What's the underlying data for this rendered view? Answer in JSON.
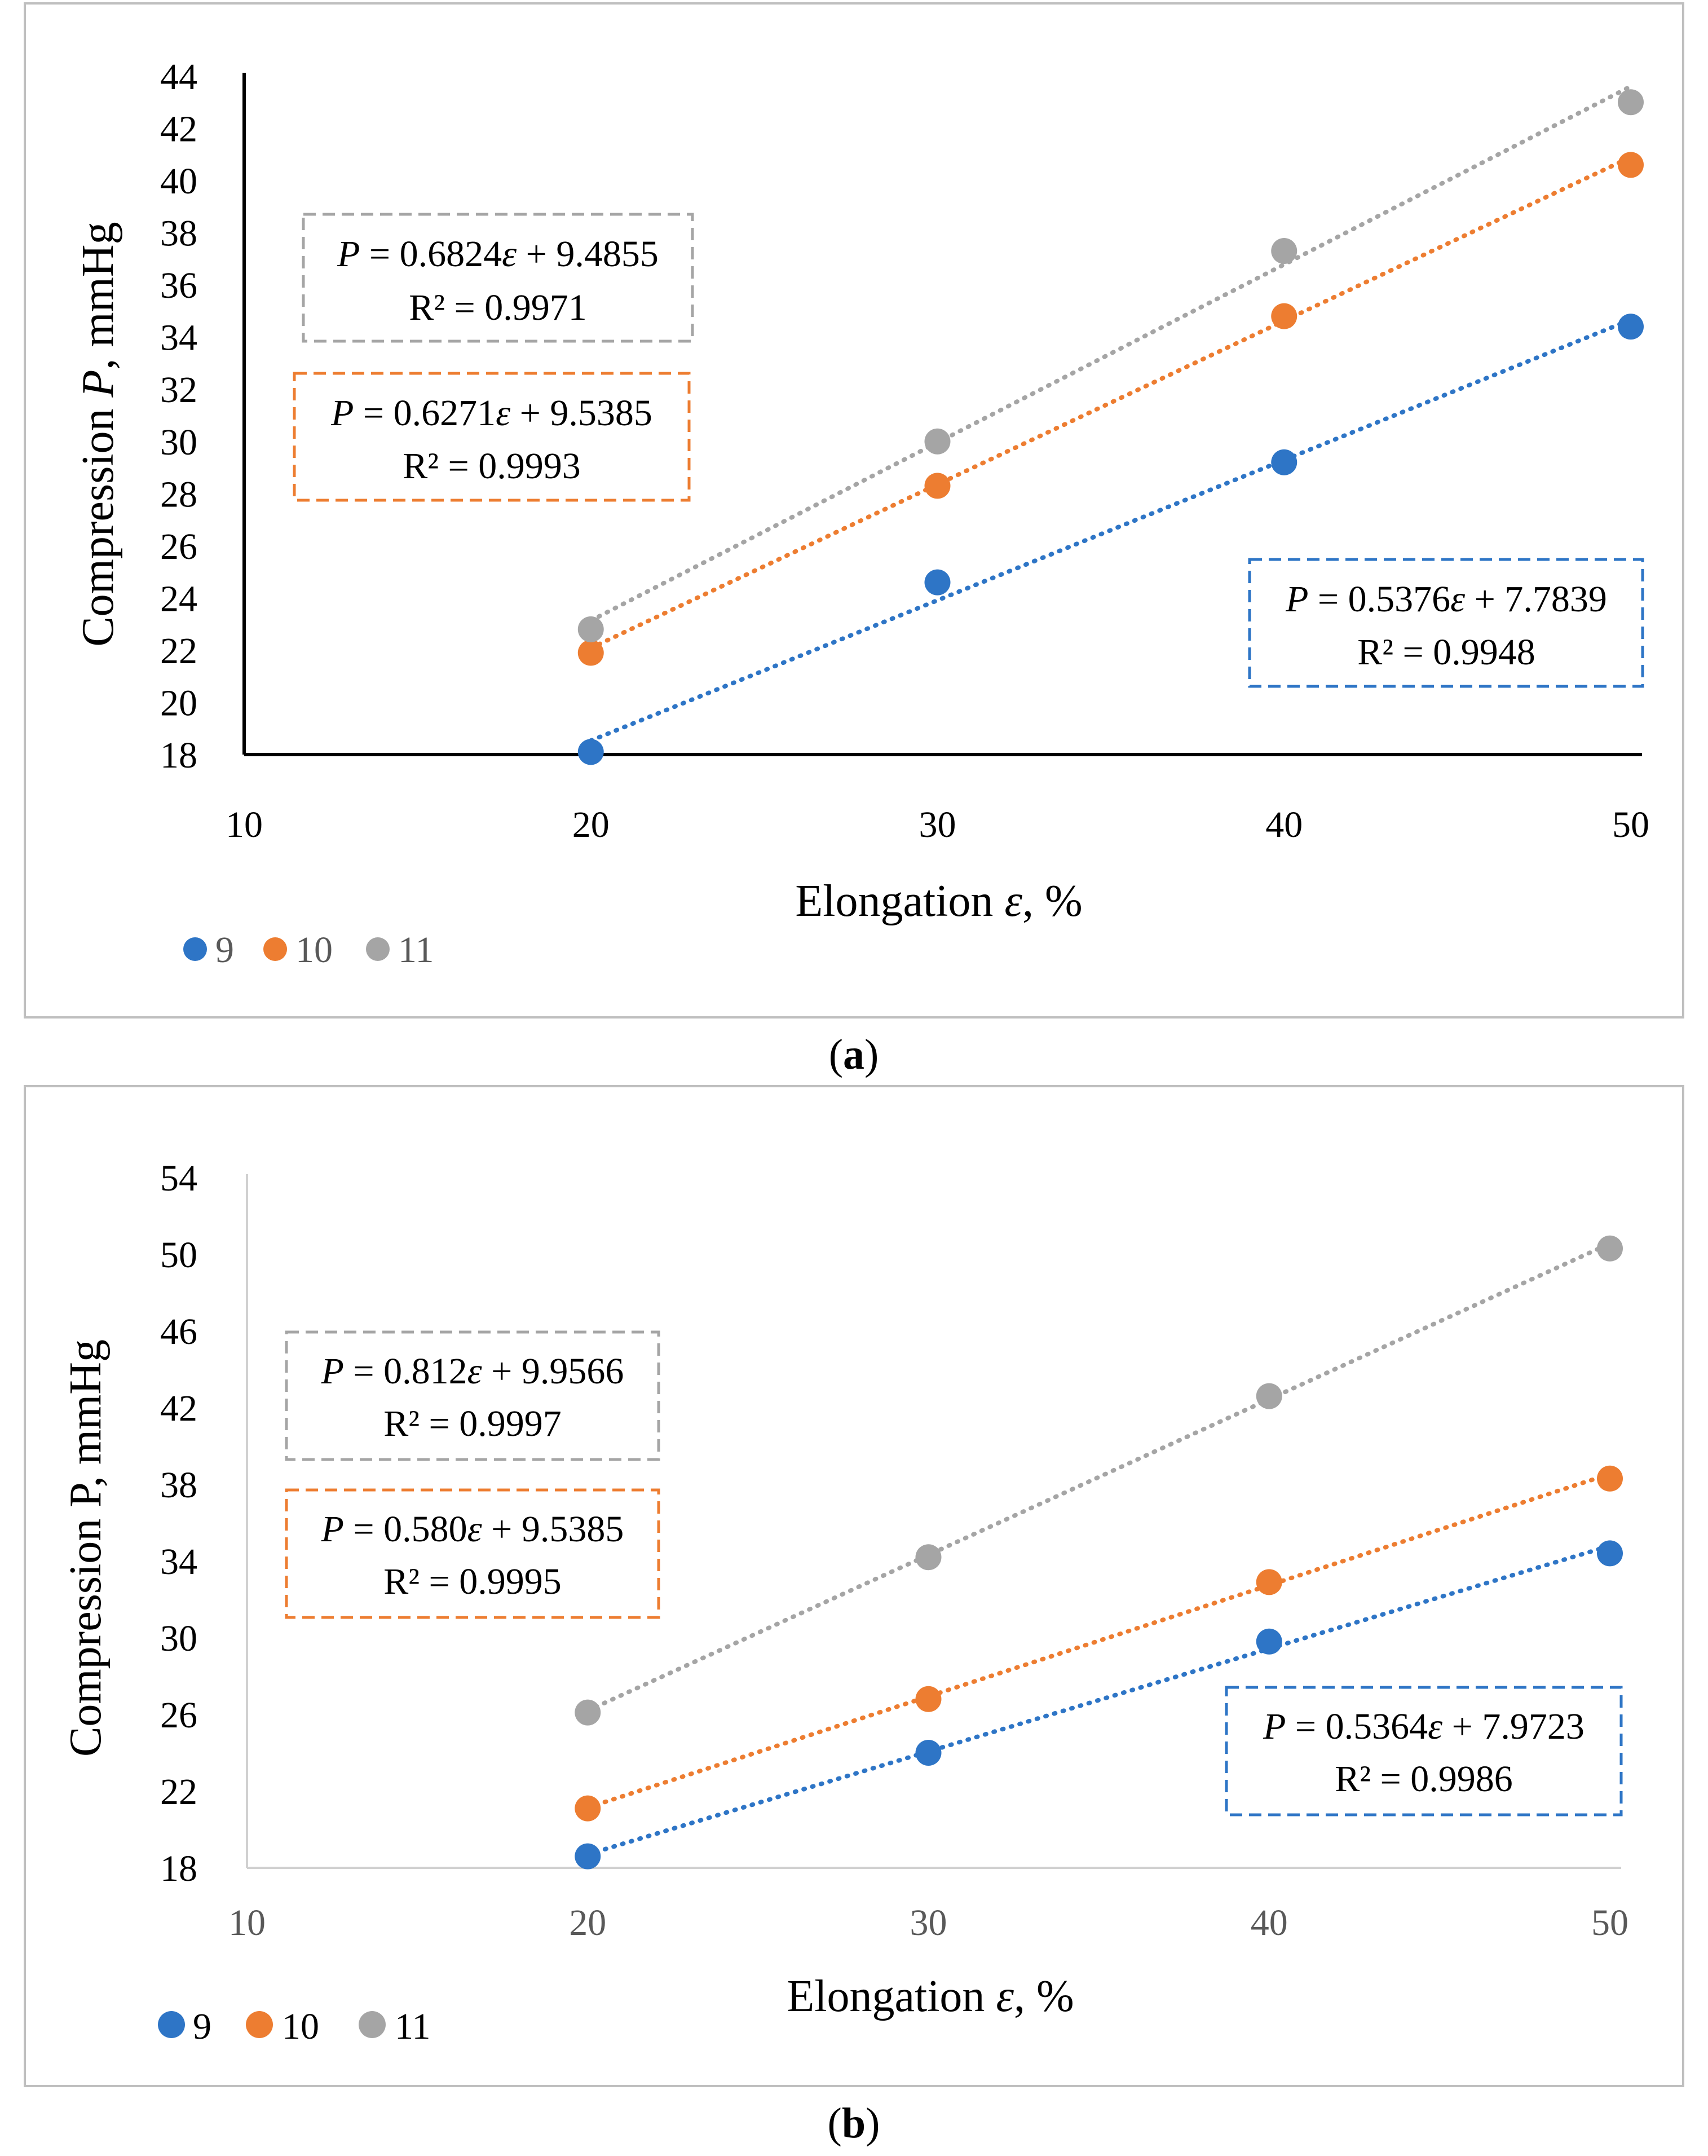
{
  "chart_data": [
    {
      "type": "scatter",
      "panel_label": "a",
      "xlabel": "Elongation ε, %",
      "ylabel": "Compression P, mmHg",
      "xlim": [
        10,
        50
      ],
      "ylim": [
        18,
        44
      ],
      "x_ticks": [
        "10",
        "20",
        "30",
        "40",
        "50"
      ],
      "y_ticks": [
        "18",
        "20",
        "22",
        "24",
        "26",
        "28",
        "30",
        "32",
        "34",
        "36",
        "38",
        "40",
        "42",
        "44"
      ],
      "axis_style": "dark",
      "legend_position": "bottom-left",
      "series": [
        {
          "name": "9",
          "color": "#2e75c6",
          "x": [
            20,
            30,
            40,
            50
          ],
          "y": [
            18.1,
            24.6,
            29.2,
            34.4
          ],
          "trendline": {
            "slope": 0.5376,
            "intercept": 7.7839
          },
          "equation": "P = 0.5376ε + 7.7839",
          "r2": "R² = 0.9948"
        },
        {
          "name": "10",
          "color": "#ed7d31",
          "x": [
            20,
            30,
            40,
            50
          ],
          "y": [
            21.9,
            28.3,
            34.8,
            40.6
          ],
          "trendline": {
            "slope": 0.6271,
            "intercept": 9.5385
          },
          "equation": "P = 0.6271ε + 9.5385",
          "r2": "R² = 0.9993"
        },
        {
          "name": "11",
          "color": "#a5a5a5",
          "x": [
            20,
            30,
            40,
            50
          ],
          "y": [
            22.8,
            30.0,
            37.3,
            43.0
          ],
          "trendline": {
            "slope": 0.6824,
            "intercept": 9.4855
          },
          "equation": "P = 0.6824ε + 9.4855",
          "r2": "R² = 0.9971"
        }
      ]
    },
    {
      "type": "scatter",
      "panel_label": "b",
      "xlabel": "Elongation ε, %",
      "ylabel": "Compression P, mmHg",
      "xlim": [
        10,
        50
      ],
      "ylim": [
        18,
        54
      ],
      "x_ticks": [
        "10",
        "20",
        "30",
        "40",
        "50"
      ],
      "y_ticks": [
        "18",
        "22",
        "26",
        "30",
        "34",
        "38",
        "42",
        "46",
        "50",
        "54"
      ],
      "axis_style": "light",
      "legend_position": "bottom-left",
      "series": [
        {
          "name": "9",
          "color": "#2e75c6",
          "x": [
            20,
            30,
            40,
            50
          ],
          "y": [
            18.6,
            24.0,
            29.8,
            34.4
          ],
          "trendline": {
            "slope": 0.5364,
            "intercept": 7.9723
          },
          "equation": "P = 0.5364ε + 7.9723",
          "r2": "R² = 0.9986"
        },
        {
          "name": "10",
          "color": "#ed7d31",
          "x": [
            20,
            30,
            40,
            50
          ],
          "y": [
            21.1,
            26.8,
            32.9,
            38.3
          ],
          "trendline": {
            "slope": 0.58,
            "intercept": 9.5385
          },
          "equation": "P = 0.580ε + 9.5385",
          "r2": "R² = 0.9995"
        },
        {
          "name": "11",
          "color": "#a5a5a5",
          "x": [
            20,
            30,
            40,
            50
          ],
          "y": [
            26.1,
            34.2,
            42.6,
            50.3
          ],
          "trendline": {
            "slope": 0.812,
            "intercept": 9.9566
          },
          "equation": "P = 0.812ε + 9.9566",
          "r2": "R² = 0.9997"
        }
      ]
    }
  ]
}
